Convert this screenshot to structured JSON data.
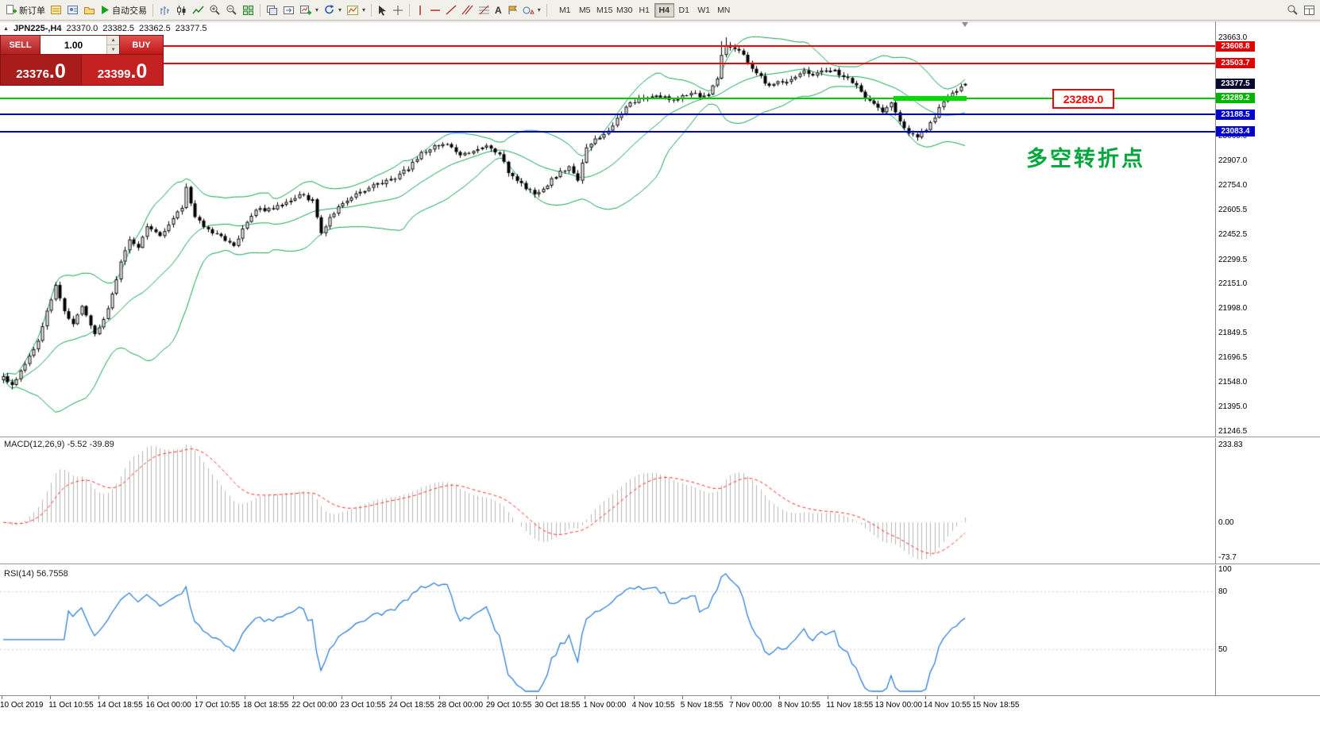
{
  "toolbar": {
    "new_order_label": "新订单",
    "auto_trading_label": "自动交易",
    "timeframes": [
      "M1",
      "M5",
      "M15",
      "M30",
      "H1",
      "H4",
      "D1",
      "W1",
      "MN"
    ],
    "active_timeframe": "H4"
  },
  "symbol_bar": {
    "symbol": "JPN225-,H4",
    "open": "23370.0",
    "high": "23382.5",
    "low": "23362.5",
    "close": "23377.5"
  },
  "order_panel": {
    "sell_label": "SELL",
    "buy_label": "BUY",
    "volume": "1.00",
    "sell_price_main": "23376",
    "sell_price_frac": ".0",
    "buy_price_main": "23399",
    "buy_price_frac": ".0"
  },
  "indicators": {
    "macd_label": "MACD(12,26,9) -5.52 -39.89",
    "rsi_label": "RSI(14) 56.7558"
  },
  "annotations": {
    "price_callout": "23289.0",
    "price_callout_color": "#ff0000",
    "turning_point": "多空转折点",
    "turning_point_color": "#00a83c"
  },
  "price_axis": {
    "plain": [
      {
        "text": "23663.0",
        "value": 23663.0
      },
      {
        "text": "23060.0",
        "value": 23060.0
      },
      {
        "text": "22907.0",
        "value": 22907.0
      },
      {
        "text": "22754.0",
        "value": 22754.0
      },
      {
        "text": "22605.5",
        "value": 22605.5
      },
      {
        "text": "22452.5",
        "value": 22452.5
      },
      {
        "text": "22299.5",
        "value": 22299.5
      },
      {
        "text": "22151.0",
        "value": 22151.0
      },
      {
        "text": "21998.0",
        "value": 21998.0
      },
      {
        "text": "21849.5",
        "value": 21849.5
      },
      {
        "text": "21696.5",
        "value": 21696.5
      },
      {
        "text": "21548.0",
        "value": 21548.0
      },
      {
        "text": "21395.0",
        "value": 21395.0
      },
      {
        "text": "21246.5",
        "value": 21246.5
      }
    ],
    "badges": [
      {
        "text": "23608.8",
        "value": 23608.8,
        "bg": "#e00000"
      },
      {
        "text": "23503.7",
        "value": 23503.7,
        "bg": "#e00000"
      },
      {
        "text": "23377.5",
        "value": 23377.5,
        "bg": "#0a0a2e"
      },
      {
        "text": "23289.2",
        "value": 23289.2,
        "bg": "#00b400"
      },
      {
        "text": "23188.5",
        "value": 23188.5,
        "bg": "#0000d0"
      },
      {
        "text": "23083.4",
        "value": 23083.4,
        "bg": "#0000d0"
      }
    ]
  },
  "macd_axis": [
    {
      "text": "233.83",
      "pos": "top"
    },
    {
      "text": "0.00",
      "pos": "zero"
    },
    {
      "text": "-73.7",
      "pos": "bottom"
    }
  ],
  "rsi_axis": [
    {
      "text": "100",
      "value": 100
    },
    {
      "text": "80",
      "value": 80
    },
    {
      "text": "50",
      "value": 50
    }
  ],
  "time_axis": [
    "10 Oct 2019",
    "11 Oct 10:55",
    "14 Oct 18:55",
    "16 Oct 00:00",
    "17 Oct 10:55",
    "18 Oct 18:55",
    "22 Oct 00:00",
    "23 Oct 10:55",
    "24 Oct 18:55",
    "28 Oct 00:00",
    "29 Oct 10:55",
    "30 Oct 18:55",
    "1 Nov 00:00",
    "4 Nov 10:55",
    "5 Nov 18:55",
    "7 Nov 00:00",
    "8 Nov 10:55",
    "11 Nov 18:55",
    "13 Nov 00:00",
    "14 Nov 10:55",
    "15 Nov 18:55"
  ],
  "chart_data": {
    "type": "candlestick",
    "symbol": "JPN225-",
    "timeframe": "H4",
    "ohlc_current": {
      "open": 23370.0,
      "high": 23382.5,
      "low": 23362.5,
      "close": 23377.5
    },
    "visible_price_range": [
      21220,
      23756
    ],
    "bars_visible": 222,
    "time_range": [
      "10 Oct 2019",
      "15 Nov 2019"
    ],
    "price_path_anchors": [
      [
        0,
        21590
      ],
      [
        1,
        21545
      ],
      [
        2,
        21520
      ],
      [
        4,
        21610
      ],
      [
        5,
        21660
      ],
      [
        8,
        21790
      ],
      [
        10,
        21980
      ],
      [
        11,
        22050
      ],
      [
        12,
        22140
      ],
      [
        14,
        21980
      ],
      [
        16,
        21900
      ],
      [
        18,
        22020
      ],
      [
        20,
        21900
      ],
      [
        21,
        21840
      ],
      [
        23,
        21930
      ],
      [
        25,
        22080
      ],
      [
        27,
        22280
      ],
      [
        29,
        22420
      ],
      [
        31,
        22380
      ],
      [
        33,
        22500
      ],
      [
        36,
        22440
      ],
      [
        39,
        22560
      ],
      [
        41,
        22620
      ],
      [
        42,
        22740
      ],
      [
        44,
        22560
      ],
      [
        47,
        22480
      ],
      [
        50,
        22440
      ],
      [
        53,
        22380
      ],
      [
        55,
        22480
      ],
      [
        58,
        22600
      ],
      [
        62,
        22610
      ],
      [
        65,
        22650
      ],
      [
        68,
        22700
      ],
      [
        71,
        22660
      ],
      [
        73,
        22460
      ],
      [
        75,
        22560
      ],
      [
        78,
        22650
      ],
      [
        81,
        22700
      ],
      [
        84,
        22740
      ],
      [
        87,
        22770
      ],
      [
        90,
        22800
      ],
      [
        93,
        22860
      ],
      [
        96,
        22950
      ],
      [
        99,
        22990
      ],
      [
        102,
        23010
      ],
      [
        105,
        22940
      ],
      [
        108,
        22970
      ],
      [
        111,
        23000
      ],
      [
        114,
        22950
      ],
      [
        116,
        22840
      ],
      [
        119,
        22760
      ],
      [
        122,
        22700
      ],
      [
        125,
        22760
      ],
      [
        128,
        22840
      ],
      [
        130,
        22860
      ],
      [
        132,
        22790
      ],
      [
        134,
        22980
      ],
      [
        136,
        23040
      ],
      [
        138,
        23060
      ],
      [
        140,
        23120
      ],
      [
        142,
        23200
      ],
      [
        144,
        23260
      ],
      [
        147,
        23290
      ],
      [
        150,
        23310
      ],
      [
        153,
        23280
      ],
      [
        156,
        23300
      ],
      [
        158,
        23330
      ],
      [
        160,
        23290
      ],
      [
        162,
        23310
      ],
      [
        164,
        23420
      ],
      [
        165,
        23560
      ],
      [
        166,
        23620
      ],
      [
        168,
        23590
      ],
      [
        170,
        23560
      ],
      [
        172,
        23460
      ],
      [
        174,
        23420
      ],
      [
        176,
        23360
      ],
      [
        178,
        23390
      ],
      [
        180,
        23400
      ],
      [
        182,
        23430
      ],
      [
        184,
        23450
      ],
      [
        186,
        23430
      ],
      [
        188,
        23450
      ],
      [
        190,
        23470
      ],
      [
        192,
        23440
      ],
      [
        194,
        23410
      ],
      [
        196,
        23360
      ],
      [
        198,
        23300
      ],
      [
        200,
        23250
      ],
      [
        202,
        23210
      ],
      [
        204,
        23270
      ],
      [
        206,
        23140
      ],
      [
        208,
        23080
      ],
      [
        210,
        23055
      ],
      [
        212,
        23100
      ],
      [
        214,
        23180
      ],
      [
        216,
        23270
      ],
      [
        218,
        23320
      ],
      [
        220,
        23360
      ],
      [
        221,
        23377.5
      ]
    ],
    "spike_highs": {
      "12": 22150,
      "42": 22765,
      "165": 23640,
      "166": 23663
    },
    "spike_lows": {
      "2": 21500,
      "210": 23028
    },
    "hlines": [
      {
        "value": 23608.8,
        "color": "#ff0000",
        "width": 2
      },
      {
        "value": 23503.7,
        "color": "#ff0000",
        "width": 2
      },
      {
        "value": 23289.2,
        "color": "#00cc00",
        "width": 2
      },
      {
        "value": 23188.5,
        "color": "#0000cc",
        "width": 2
      },
      {
        "value": 23083.4,
        "color": "#0000cc",
        "width": 2
      }
    ],
    "highlight_segment": {
      "value": 23289.0,
      "from_bar": 205,
      "to_bar": 221,
      "color": "#00dd00",
      "thickness": 6
    },
    "style": {
      "candle_up": "#ffffff",
      "candle_down": "#000000",
      "candle_border": "#000000"
    },
    "bollinger": {
      "period": 20,
      "deviation": 2,
      "color": "#12a150"
    },
    "macd": {
      "fast": 12,
      "slow": 26,
      "signal": 9,
      "main_value": -5.52,
      "signal_value": -39.89,
      "scale_max": 233.83,
      "scale_min": -73.7,
      "histogram_color": "#b6b6b6",
      "signal_color": "#ff2a2a"
    },
    "rsi": {
      "period": 14,
      "value": 56.7558,
      "color": "#2f7fd6",
      "levels": [
        80,
        50
      ],
      "level_color": "#d0d0d0"
    }
  }
}
